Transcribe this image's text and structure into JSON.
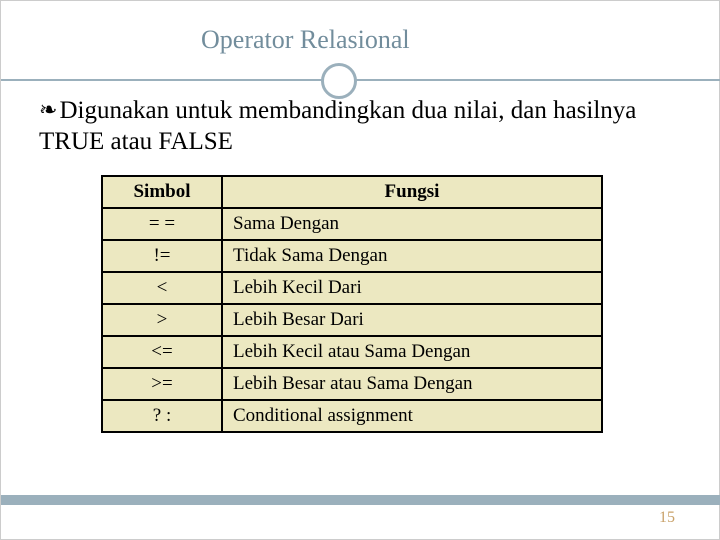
{
  "title": "Operator Relasional",
  "body": "Digunakan untuk membandingkan dua nilai, dan hasilnya TRUE atau FALSE",
  "bullet_glyph": "་",
  "table": {
    "headers": {
      "simbol": "Simbol",
      "fungsi": "Fungsi"
    },
    "rows": [
      {
        "simbol": "= =",
        "fungsi": "Sama Dengan"
      },
      {
        "simbol": "!=",
        "fungsi": "Tidak Sama Dengan"
      },
      {
        "simbol": "<",
        "fungsi": "Lebih Kecil Dari"
      },
      {
        "simbol": ">",
        "fungsi": " Lebih Besar Dari"
      },
      {
        "simbol": "<=",
        "fungsi": "Lebih Kecil atau Sama Dengan"
      },
      {
        "simbol": ">=",
        "fungsi": "Lebih Besar atau Sama Dengan"
      },
      {
        "simbol": "? :",
        "fungsi": "Conditional assignment"
      }
    ],
    "bg_color": "#ece8c1",
    "border_color": "#000000"
  },
  "page_number": "15",
  "colors": {
    "title": "#728d9c",
    "accent": "#9bb0bc",
    "page_num": "#c9a26a"
  }
}
